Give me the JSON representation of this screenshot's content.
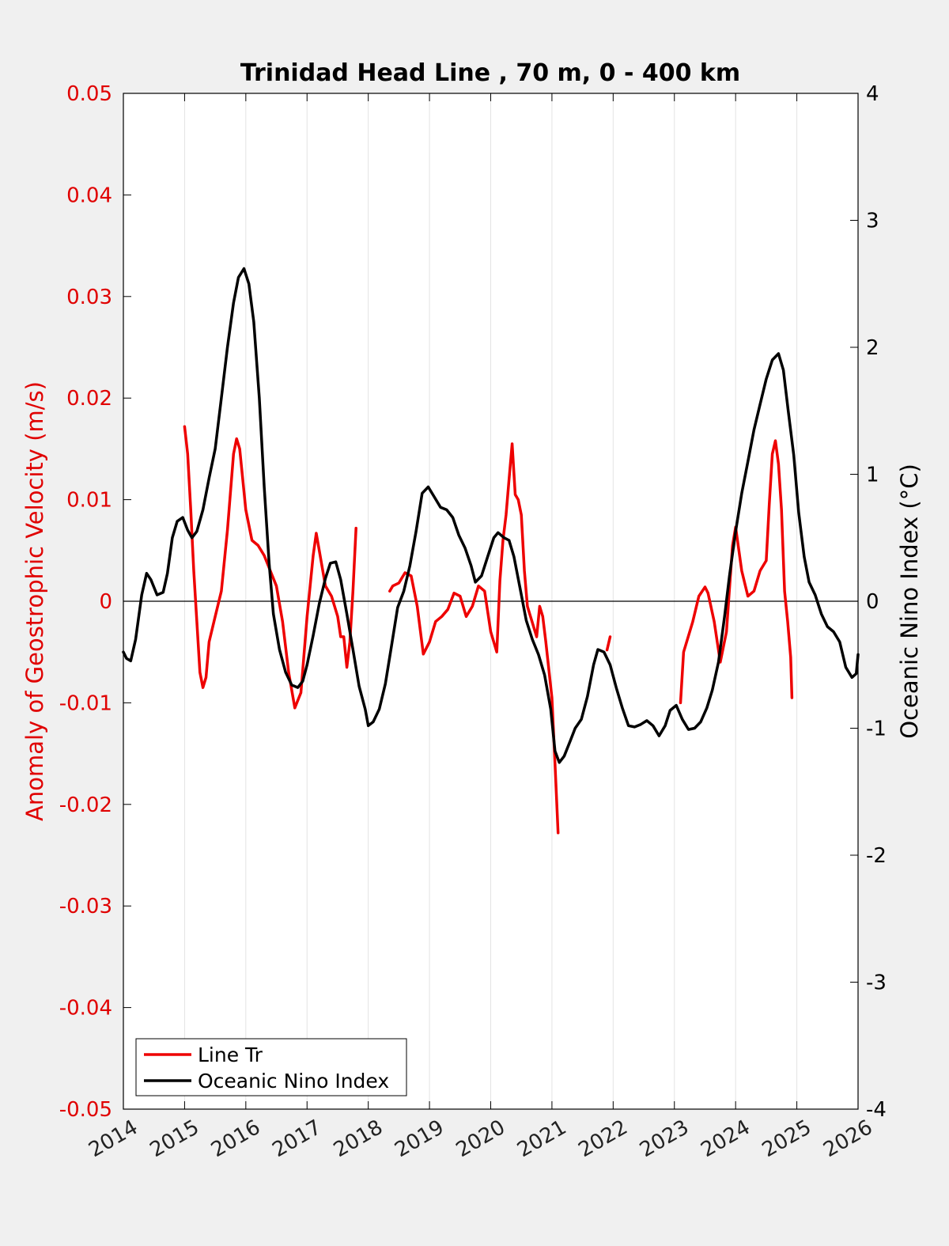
{
  "chart_data": {
    "type": "line",
    "title": "Trinidad Head Line , 70 m, 0 - 400 km",
    "xlabel": "",
    "ylabel_left": "Anomaly of Geostrophic Velocity (m/s)",
    "ylabel_right": "Oceanic Nino Index (°C)",
    "xlim": [
      2014,
      2026
    ],
    "ylim_left": [
      -0.05,
      0.05
    ],
    "ylim_right": [
      -4,
      4
    ],
    "x_ticks": [
      "2014",
      "2015",
      "2016",
      "2017",
      "2018",
      "2019",
      "2020",
      "2021",
      "2022",
      "2023",
      "2024",
      "2025",
      "2026"
    ],
    "y_left_ticks": [
      "0.05",
      "0.04",
      "0.03",
      "0.02",
      "0.01",
      "0",
      "-0.01",
      "-0.02",
      "-0.03",
      "-0.04",
      "-0.05"
    ],
    "y_right_ticks": [
      "4",
      "3",
      "2",
      "1",
      "0",
      "-1",
      "-2",
      "-3",
      "-4"
    ],
    "grid": "vertical",
    "legend_position": "bottom-left",
    "colors": {
      "line_tr": "#ee0000",
      "oni": "#000000",
      "left_axis": "#e00000"
    },
    "series": [
      {
        "name": "Line Tr",
        "axis": "left",
        "segments": [
          [
            [
              2015.0,
              0.0172
            ],
            [
              2015.05,
              0.0145
            ],
            [
              2015.1,
              0.009
            ],
            [
              2015.15,
              0.003
            ],
            [
              2015.2,
              -0.002
            ],
            [
              2015.25,
              -0.007
            ],
            [
              2015.3,
              -0.0085
            ],
            [
              2015.35,
              -0.0075
            ],
            [
              2015.4,
              -0.004
            ],
            [
              2015.5,
              -0.0015
            ],
            [
              2015.6,
              0.001
            ],
            [
              2015.7,
              0.007
            ],
            [
              2015.8,
              0.0145
            ],
            [
              2015.85,
              0.016
            ],
            [
              2015.9,
              0.015
            ],
            [
              2016.0,
              0.009
            ],
            [
              2016.1,
              0.006
            ],
            [
              2016.2,
              0.0055
            ],
            [
              2016.3,
              0.0045
            ],
            [
              2016.4,
              0.003
            ],
            [
              2016.5,
              0.0015
            ],
            [
              2016.6,
              -0.002
            ],
            [
              2016.7,
              -0.007
            ],
            [
              2016.8,
              -0.0105
            ],
            [
              2016.9,
              -0.009
            ],
            [
              2017.0,
              -0.0015
            ],
            [
              2017.1,
              0.0045
            ],
            [
              2017.15,
              0.0067
            ],
            [
              2017.2,
              0.005
            ],
            [
              2017.3,
              0.0015
            ],
            [
              2017.4,
              0.0005
            ],
            [
              2017.5,
              -0.0015
            ],
            [
              2017.55,
              -0.0035
            ],
            [
              2017.6,
              -0.0035
            ],
            [
              2017.65,
              -0.0065
            ],
            [
              2017.7,
              -0.004
            ],
            [
              2017.75,
              0.001
            ],
            [
              2017.8,
              0.0072
            ]
          ],
          [
            [
              2018.35,
              0.001
            ],
            [
              2018.4,
              0.0015
            ],
            [
              2018.5,
              0.0018
            ],
            [
              2018.6,
              0.0028
            ],
            [
              2018.7,
              0.0025
            ],
            [
              2018.8,
              -0.0005
            ],
            [
              2018.9,
              -0.0052
            ],
            [
              2019.0,
              -0.004
            ],
            [
              2019.1,
              -0.002
            ],
            [
              2019.2,
              -0.0015
            ],
            [
              2019.3,
              -0.0008
            ],
            [
              2019.4,
              0.0008
            ],
            [
              2019.5,
              0.0005
            ],
            [
              2019.6,
              -0.0015
            ],
            [
              2019.7,
              -0.0005
            ],
            [
              2019.8,
              0.0015
            ],
            [
              2019.9,
              0.001
            ],
            [
              2020.0,
              -0.003
            ],
            [
              2020.1,
              -0.005
            ],
            [
              2020.15,
              0.002
            ],
            [
              2020.2,
              0.006
            ],
            [
              2020.25,
              0.0085
            ],
            [
              2020.3,
              0.012
            ],
            [
              2020.35,
              0.0155
            ],
            [
              2020.4,
              0.0105
            ],
            [
              2020.45,
              0.01
            ],
            [
              2020.5,
              0.0085
            ],
            [
              2020.55,
              0.003
            ],
            [
              2020.6,
              -0.0005
            ],
            [
              2020.7,
              -0.0025
            ],
            [
              2020.75,
              -0.0035
            ],
            [
              2020.8,
              -0.0005
            ],
            [
              2020.85,
              -0.0015
            ],
            [
              2020.9,
              -0.004
            ],
            [
              2021.0,
              -0.0095
            ],
            [
              2021.05,
              -0.016
            ],
            [
              2021.1,
              -0.0228
            ]
          ],
          [
            [
              2021.9,
              -0.0048
            ],
            [
              2021.95,
              -0.0035
            ]
          ],
          [
            [
              2023.1,
              -0.01
            ],
            [
              2023.15,
              -0.005
            ],
            [
              2023.3,
              -0.002
            ],
            [
              2023.4,
              0.0005
            ],
            [
              2023.5,
              0.0014
            ],
            [
              2023.55,
              0.0008
            ],
            [
              2023.65,
              -0.002
            ],
            [
              2023.75,
              -0.006
            ],
            [
              2023.85,
              -0.003
            ],
            [
              2023.95,
              0.0055
            ],
            [
              2024.0,
              0.0073
            ],
            [
              2024.1,
              0.003
            ],
            [
              2024.2,
              0.0005
            ],
            [
              2024.3,
              0.001
            ],
            [
              2024.4,
              0.003
            ],
            [
              2024.5,
              0.004
            ],
            [
              2024.55,
              0.0095
            ],
            [
              2024.6,
              0.0145
            ],
            [
              2024.65,
              0.0158
            ],
            [
              2024.7,
              0.0135
            ],
            [
              2024.75,
              0.009
            ],
            [
              2024.8,
              0.001
            ],
            [
              2024.85,
              -0.002
            ],
            [
              2024.9,
              -0.0055
            ],
            [
              2024.92,
              -0.0095
            ]
          ]
        ]
      },
      {
        "name": "Oceanic Nino Index",
        "axis": "right",
        "segments": [
          [
            [
              2014.0,
              -0.4
            ],
            [
              2014.05,
              -0.45
            ],
            [
              2014.12,
              -0.47
            ],
            [
              2014.2,
              -0.3
            ],
            [
              2014.3,
              0.05
            ],
            [
              2014.38,
              0.22
            ],
            [
              2014.45,
              0.17
            ],
            [
              2014.55,
              0.05
            ],
            [
              2014.65,
              0.07
            ],
            [
              2014.72,
              0.22
            ],
            [
              2014.8,
              0.5
            ],
            [
              2014.88,
              0.63
            ],
            [
              2014.97,
              0.66
            ],
            [
              2015.05,
              0.56
            ],
            [
              2015.12,
              0.5
            ],
            [
              2015.2,
              0.55
            ],
            [
              2015.3,
              0.72
            ],
            [
              2015.4,
              0.97
            ],
            [
              2015.5,
              1.2
            ],
            [
              2015.6,
              1.6
            ],
            [
              2015.7,
              2.0
            ],
            [
              2015.8,
              2.35
            ],
            [
              2015.88,
              2.55
            ],
            [
              2015.97,
              2.62
            ],
            [
              2016.05,
              2.5
            ],
            [
              2016.13,
              2.2
            ],
            [
              2016.22,
              1.6
            ],
            [
              2016.3,
              0.9
            ],
            [
              2016.38,
              0.3
            ],
            [
              2016.45,
              -0.1
            ],
            [
              2016.55,
              -0.38
            ],
            [
              2016.65,
              -0.56
            ],
            [
              2016.75,
              -0.66
            ],
            [
              2016.85,
              -0.68
            ],
            [
              2016.93,
              -0.63
            ],
            [
              2017.0,
              -0.5
            ],
            [
              2017.1,
              -0.27
            ],
            [
              2017.2,
              -0.02
            ],
            [
              2017.3,
              0.18
            ],
            [
              2017.38,
              0.3
            ],
            [
              2017.47,
              0.31
            ],
            [
              2017.55,
              0.17
            ],
            [
              2017.65,
              -0.1
            ],
            [
              2017.75,
              -0.38
            ],
            [
              2017.85,
              -0.67
            ],
            [
              2017.95,
              -0.85
            ],
            [
              2018.0,
              -0.98
            ],
            [
              2018.08,
              -0.95
            ],
            [
              2018.18,
              -0.85
            ],
            [
              2018.28,
              -0.65
            ],
            [
              2018.38,
              -0.35
            ],
            [
              2018.48,
              -0.05
            ],
            [
              2018.58,
              0.08
            ],
            [
              2018.68,
              0.28
            ],
            [
              2018.78,
              0.55
            ],
            [
              2018.88,
              0.85
            ],
            [
              2018.98,
              0.9
            ],
            [
              2019.08,
              0.82
            ],
            [
              2019.18,
              0.74
            ],
            [
              2019.28,
              0.72
            ],
            [
              2019.38,
              0.66
            ],
            [
              2019.48,
              0.52
            ],
            [
              2019.58,
              0.42
            ],
            [
              2019.68,
              0.28
            ],
            [
              2019.75,
              0.15
            ],
            [
              2019.85,
              0.2
            ],
            [
              2019.95,
              0.35
            ],
            [
              2020.05,
              0.5
            ],
            [
              2020.12,
              0.54
            ],
            [
              2020.22,
              0.5
            ],
            [
              2020.3,
              0.48
            ],
            [
              2020.38,
              0.35
            ],
            [
              2020.48,
              0.1
            ],
            [
              2020.58,
              -0.15
            ],
            [
              2020.68,
              -0.3
            ],
            [
              2020.78,
              -0.42
            ],
            [
              2020.88,
              -0.58
            ],
            [
              2020.98,
              -0.85
            ],
            [
              2021.05,
              -1.18
            ],
            [
              2021.12,
              -1.27
            ],
            [
              2021.2,
              -1.22
            ],
            [
              2021.3,
              -1.1
            ],
            [
              2021.38,
              -1.0
            ],
            [
              2021.48,
              -0.93
            ],
            [
              2021.58,
              -0.75
            ],
            [
              2021.68,
              -0.5
            ],
            [
              2021.75,
              -0.38
            ],
            [
              2021.85,
              -0.4
            ],
            [
              2021.95,
              -0.5
            ],
            [
              2022.05,
              -0.68
            ],
            [
              2022.15,
              -0.84
            ],
            [
              2022.25,
              -0.98
            ],
            [
              2022.35,
              -0.99
            ],
            [
              2022.45,
              -0.97
            ],
            [
              2022.55,
              -0.94
            ],
            [
              2022.65,
              -0.98
            ],
            [
              2022.75,
              -1.06
            ],
            [
              2022.85,
              -0.98
            ],
            [
              2022.93,
              -0.86
            ],
            [
              2023.03,
              -0.82
            ],
            [
              2023.13,
              -0.93
            ],
            [
              2023.23,
              -1.01
            ],
            [
              2023.33,
              -1.0
            ],
            [
              2023.43,
              -0.95
            ],
            [
              2023.53,
              -0.84
            ],
            [
              2023.62,
              -0.7
            ],
            [
              2023.72,
              -0.48
            ],
            [
              2023.82,
              -0.12
            ],
            [
              2023.9,
              0.2
            ],
            [
              2024.0,
              0.55
            ],
            [
              2024.1,
              0.85
            ],
            [
              2024.2,
              1.1
            ],
            [
              2024.3,
              1.35
            ],
            [
              2024.4,
              1.55
            ],
            [
              2024.5,
              1.75
            ],
            [
              2024.6,
              1.9
            ],
            [
              2024.7,
              1.95
            ],
            [
              2024.78,
              1.82
            ],
            [
              2024.86,
              1.5
            ],
            [
              2024.95,
              1.15
            ],
            [
              2025.03,
              0.7
            ],
            [
              2025.12,
              0.35
            ],
            [
              2025.2,
              0.15
            ],
            [
              2025.3,
              0.05
            ],
            [
              2025.4,
              -0.1
            ],
            [
              2025.5,
              -0.2
            ],
            [
              2025.6,
              -0.24
            ],
            [
              2025.7,
              -0.32
            ],
            [
              2025.8,
              -0.52
            ],
            [
              2025.9,
              -0.6
            ],
            [
              2025.97,
              -0.57
            ],
            [
              2026.0,
              -0.42
            ]
          ]
        ]
      }
    ]
  }
}
